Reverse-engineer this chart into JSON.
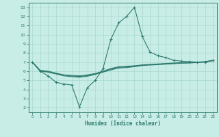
{
  "title": "",
  "xlabel": "Humidex (Indice chaleur)",
  "bg_color": "#c8ece6",
  "line_color": "#2e7b6e",
  "grid_color": "#a8d8d0",
  "spine_color": "#2e7b6e",
  "xlim": [
    -0.5,
    23.5
  ],
  "ylim": [
    1.5,
    13.5
  ],
  "xticks": [
    0,
    1,
    2,
    3,
    4,
    5,
    6,
    7,
    8,
    9,
    10,
    11,
    12,
    13,
    14,
    15,
    16,
    17,
    18,
    19,
    20,
    21,
    22,
    23
  ],
  "yticks": [
    2,
    3,
    4,
    5,
    6,
    7,
    8,
    9,
    10,
    11,
    12,
    13
  ],
  "line1_x": [
    0,
    1,
    2,
    3,
    4,
    5,
    6,
    7,
    8,
    9,
    10,
    11,
    12,
    13,
    14,
    15,
    16,
    17,
    18,
    19,
    20,
    21,
    22,
    23
  ],
  "line1_y": [
    7.0,
    6.0,
    5.5,
    4.8,
    4.6,
    4.5,
    2.1,
    4.2,
    5.0,
    6.3,
    9.5,
    11.3,
    12.0,
    13.0,
    9.8,
    8.1,
    7.7,
    7.5,
    7.2,
    7.1,
    7.05,
    7.0,
    7.0,
    7.2
  ],
  "line2_x": [
    0,
    1,
    2,
    3,
    4,
    5,
    6,
    7,
    8,
    9,
    10,
    11,
    12,
    13,
    14,
    15,
    16,
    17,
    18,
    19,
    20,
    21,
    22,
    23
  ],
  "line2_y": [
    7.0,
    6.1,
    6.0,
    5.8,
    5.6,
    5.55,
    5.5,
    5.6,
    5.75,
    6.0,
    6.3,
    6.5,
    6.55,
    6.6,
    6.7,
    6.75,
    6.8,
    6.85,
    6.9,
    6.95,
    6.95,
    7.0,
    7.05,
    7.2
  ],
  "line3_x": [
    0,
    1,
    2,
    3,
    4,
    5,
    6,
    7,
    8,
    9,
    10,
    11,
    12,
    13,
    14,
    15,
    16,
    17,
    18,
    19,
    20,
    21,
    22,
    23
  ],
  "line3_y": [
    7.0,
    6.0,
    5.9,
    5.7,
    5.5,
    5.4,
    5.35,
    5.45,
    5.65,
    5.9,
    6.15,
    6.35,
    6.4,
    6.5,
    6.62,
    6.68,
    6.72,
    6.78,
    6.82,
    6.88,
    6.9,
    6.95,
    7.0,
    7.15
  ],
  "line4_x": [
    0,
    1,
    2,
    3,
    4,
    5,
    6,
    7,
    8,
    9,
    10,
    11,
    12,
    13,
    14,
    15,
    16,
    17,
    18,
    19,
    20,
    21,
    22,
    23
  ],
  "line4_y": [
    7.0,
    6.05,
    5.95,
    5.75,
    5.58,
    5.48,
    5.43,
    5.52,
    5.7,
    5.95,
    6.22,
    6.42,
    6.47,
    6.55,
    6.66,
    6.72,
    6.76,
    6.82,
    6.86,
    6.92,
    6.93,
    6.97,
    7.03,
    7.18
  ]
}
